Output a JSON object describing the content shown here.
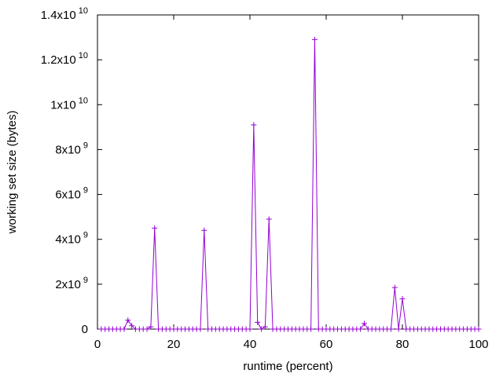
{
  "chart_data": {
    "type": "line",
    "xlabel": "runtime (percent)",
    "ylabel": "working set size (bytes)",
    "xlim": [
      0,
      100
    ],
    "ylim": [
      0,
      14000000000
    ],
    "x_ticks": [
      0,
      20,
      40,
      60,
      80,
      100
    ],
    "x_tick_labels": [
      "0",
      "20",
      "40",
      "60",
      "80",
      "100"
    ],
    "y_ticks": [
      {
        "value": 0,
        "mantissa": "0",
        "exp": ""
      },
      {
        "value": 2000000000,
        "mantissa": "2x10",
        "exp": "9"
      },
      {
        "value": 4000000000,
        "mantissa": "4x10",
        "exp": "9"
      },
      {
        "value": 6000000000,
        "mantissa": "6x10",
        "exp": "9"
      },
      {
        "value": 8000000000,
        "mantissa": "8x10",
        "exp": "9"
      },
      {
        "value": 10000000000,
        "mantissa": "1x10",
        "exp": "10"
      },
      {
        "value": 12000000000,
        "mantissa": "1.2x10",
        "exp": "10"
      },
      {
        "value": 14000000000,
        "mantissa": "1.4x10",
        "exp": "10"
      }
    ],
    "grid": false,
    "legend": "none",
    "series_color": "#9400d3",
    "marker": "plus",
    "x": [
      1,
      2,
      3,
      4,
      5,
      6,
      7,
      8,
      9,
      10,
      11,
      12,
      13,
      14,
      15,
      16,
      17,
      18,
      19,
      20,
      21,
      22,
      23,
      24,
      25,
      26,
      27,
      28,
      29,
      30,
      31,
      32,
      33,
      34,
      35,
      36,
      37,
      38,
      39,
      40,
      41,
      42,
      43,
      44,
      45,
      46,
      47,
      48,
      49,
      50,
      51,
      52,
      53,
      54,
      55,
      56,
      57,
      58,
      59,
      60,
      61,
      62,
      63,
      64,
      65,
      66,
      67,
      68,
      69,
      70,
      71,
      72,
      73,
      74,
      75,
      76,
      77,
      78,
      79,
      80,
      81,
      82,
      83,
      84,
      85,
      86,
      87,
      88,
      89,
      90,
      91,
      92,
      93,
      94,
      95,
      96,
      97,
      98,
      99,
      100
    ],
    "y": [
      0,
      0,
      0,
      0,
      0,
      0,
      0,
      400000000,
      150000000,
      0,
      0,
      0,
      0,
      100000000,
      4500000000,
      0,
      0,
      0,
      0,
      0,
      0,
      0,
      0,
      0,
      0,
      0,
      0,
      4400000000,
      0,
      0,
      0,
      0,
      0,
      0,
      0,
      0,
      0,
      0,
      0,
      0,
      9100000000,
      300000000,
      0,
      100000000,
      4900000000,
      0,
      0,
      0,
      0,
      0,
      0,
      0,
      0,
      0,
      0,
      0,
      12900000000,
      0,
      0,
      0,
      0,
      0,
      0,
      0,
      0,
      0,
      0,
      0,
      0,
      250000000,
      0,
      0,
      0,
      0,
      0,
      0,
      0,
      1850000000,
      0,
      1350000000,
      0,
      0,
      0,
      0,
      0,
      0,
      0,
      0,
      0,
      0,
      0,
      0,
      0,
      0,
      0,
      0,
      0,
      0,
      0,
      0
    ]
  }
}
